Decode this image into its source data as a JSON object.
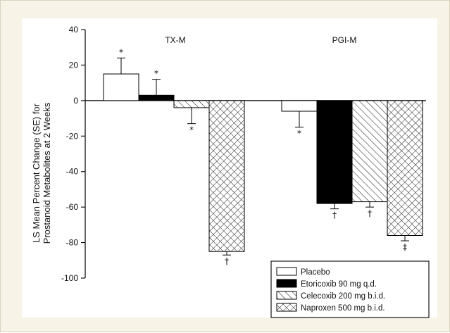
{
  "chart_data": {
    "type": "bar",
    "title": "",
    "ylabel_line1": "LS Mean Percent Change (SE) for",
    "ylabel_line2": "Prostanoid Metabolites at 2 Weeks",
    "xlabel": "",
    "ylim": [
      -100,
      40
    ],
    "yticks": [
      "40",
      "20",
      "0",
      "-20",
      "-40",
      "-60",
      "-80",
      "-100"
    ],
    "ytick_values": [
      40,
      20,
      0,
      -20,
      -40,
      -60,
      -80,
      -100
    ],
    "categories": [
      "TX-M",
      "PGI-M"
    ],
    "series": [
      {
        "name": "Placebo",
        "values": [
          15,
          -6
        ],
        "errors": [
          9,
          9
        ],
        "fill": "empty",
        "markers": [
          "*",
          "*"
        ]
      },
      {
        "name": "Etoricoxib 90 mg q.d.",
        "values": [
          3,
          -58
        ],
        "errors": [
          9,
          3
        ],
        "fill": "solid",
        "markers": [
          "*",
          "†"
        ]
      },
      {
        "name": "Celecoxib 200 mg b.i.d.",
        "values": [
          -4,
          -57
        ],
        "errors": [
          9,
          3
        ],
        "fill": "diagonal",
        "markers": [
          "*",
          "†"
        ]
      },
      {
        "name": "Naproxen 500 mg b.i.d.",
        "values": [
          -85,
          -76
        ],
        "errors": [
          2,
          3
        ],
        "fill": "crosshatch",
        "markers": [
          "†",
          "‡"
        ]
      }
    ],
    "legend_position": "bottom-right",
    "grid": false
  }
}
